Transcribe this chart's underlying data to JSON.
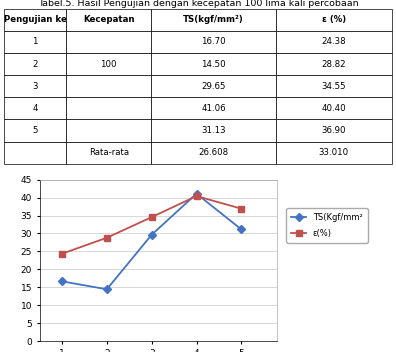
{
  "table_title": "Tabel.5. Hasil Pengujian dengan kecepatan 100 lima kali percobaan",
  "col_headers": [
    "Pengujian ke",
    "Kecepatan",
    "TS(kgf/mm²)",
    "ε (%)"
  ],
  "rows": [
    [
      "1",
      "",
      "16.70",
      "24.38"
    ],
    [
      "2",
      "100",
      "14.50",
      "28.82"
    ],
    [
      "3",
      "",
      "29.65",
      "34.55"
    ],
    [
      "4",
      "",
      "41.06",
      "40.40"
    ],
    [
      "5",
      "",
      "31.13",
      "36.90"
    ],
    [
      "",
      "Rata-rata",
      "26.608",
      "33.010"
    ]
  ],
  "x": [
    1,
    2,
    3,
    4,
    5
  ],
  "ts_values": [
    16.7,
    14.5,
    29.65,
    41.06,
    31.13
  ],
  "epsilon_values": [
    24.38,
    28.82,
    34.55,
    40.4,
    36.9
  ],
  "ts_color": "#4472C4",
  "epsilon_color": "#C0504D",
  "ts_label": "TS(Kgf/mm²",
  "epsilon_label": "ε(%)",
  "ylim": [
    0,
    45
  ],
  "yticks": [
    0,
    5,
    10,
    15,
    20,
    25,
    30,
    35,
    40,
    45
  ],
  "xlim": [
    0.5,
    5.8
  ],
  "xticks": [
    1,
    2,
    3,
    4,
    5
  ],
  "bg_color": "#ffffff",
  "grid_color": "#c8c8c8"
}
